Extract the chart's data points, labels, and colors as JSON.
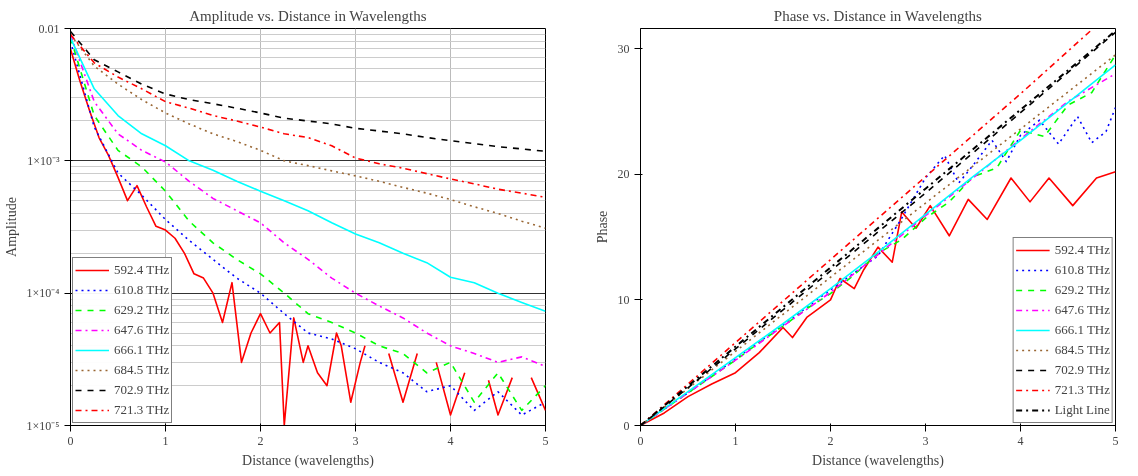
{
  "chart_data": [
    {
      "type": "line",
      "title": "Amplitude vs. Distance in Wavelengths",
      "xlabel": "Distance (wavelengths)",
      "ylabel": "Amplitude",
      "log": "y",
      "grid": true,
      "legend": "bottom left",
      "xlim": [
        0,
        5
      ],
      "xticks": [
        0,
        1,
        2,
        3,
        4,
        5
      ],
      "ylim": [
        1e-05,
        0.01
      ],
      "yticks": [
        {
          "value": 1e-05,
          "label": "1×10⁻⁵"
        },
        {
          "value": 0.0001,
          "label": "1×10⁻⁴"
        },
        {
          "value": 0.001,
          "label": "1×10⁻³"
        },
        0.01
      ],
      "x": [
        0,
        0.25,
        0.5,
        0.75,
        1,
        1.25,
        1.5,
        1.75,
        2,
        2.25,
        2.5,
        2.75,
        3,
        3.25,
        3.5,
        3.75,
        4,
        4.25,
        4.5,
        4.75,
        5
      ],
      "series": [
        {
          "name": "592.4 THz",
          "color": "#ff0000",
          "line_style": "solid",
          "x": [
            0,
            0.1,
            0.2,
            0.3,
            0.4,
            0.5,
            0.6,
            0.7,
            0.8,
            0.9,
            1.0,
            1.1,
            1.2,
            1.3,
            1.4,
            1.5,
            1.6,
            1.7,
            1.8,
            1.9,
            2.0,
            2.1,
            2.2,
            2.25,
            2.35,
            2.45,
            2.5,
            2.6,
            2.7,
            2.8,
            2.85,
            2.95,
            3.05,
            3.1,
            3.2,
            3.35,
            3.5,
            3.65,
            3.75,
            3.85,
            4.0,
            4.15,
            4.25,
            4.4,
            4.5,
            4.65,
            4.75,
            4.85,
            5.0
          ],
          "values": [
            0.007,
            0.004,
            0.0024,
            0.0015,
            0.0011,
            0.00075,
            0.0005,
            0.00065,
            0.00045,
            0.00032,
            0.0003,
            0.00026,
            0.0002,
            0.00014,
            0.00013,
            0.0001,
            6e-05,
            0.00012,
            3e-05,
            5e-05,
            7e-05,
            5e-05,
            6e-05,
            1e-05,
            6.5e-05,
            3e-05,
            4e-05,
            2.5e-05,
            2e-05,
            5e-05,
            4e-05,
            1.5e-05,
            3e-05,
            4e-05,
            null,
            3.5e-05,
            1.5e-05,
            3.5e-05,
            null,
            3e-05,
            1.2e-05,
            2.5e-05,
            null,
            2.2e-05,
            1.2e-05,
            2.3e-05,
            null,
            2.3e-05,
            1.3e-05
          ]
        },
        {
          "name": "610.8 THz",
          "color": "#0000ff",
          "line_style": "dotted",
          "values": [
            0.008,
            0.0018,
            0.00081,
            0.00055,
            0.00036,
            0.00025,
            0.00018,
            0.00013,
            0.0001,
            7e-05,
            5e-05,
            4.5e-05,
            3.8e-05,
            3e-05,
            2.5e-05,
            1.8e-05,
            2e-05,
            1.3e-05,
            1.8e-05,
            1.2e-05,
            1.5e-05
          ]
        },
        {
          "name": "629.2 THz",
          "color": "#00ff00",
          "line_style": "dashed",
          "values": [
            0.0085,
            0.0022,
            0.0012,
            0.0009,
            0.00059,
            0.00035,
            0.00024,
            0.00018,
            0.00014,
            0.0001,
            7e-05,
            6e-05,
            5e-05,
            4e-05,
            3.5e-05,
            2.5e-05,
            3e-05,
            1.5e-05,
            2.5e-05,
            1.3e-05,
            2e-05
          ]
        },
        {
          "name": "647.6 THz",
          "color": "#ff00ff",
          "line_style": "dashdot",
          "values": [
            0.009,
            0.0028,
            0.0016,
            0.0012,
            0.00098,
            0.0007,
            0.00052,
            0.00042,
            0.00034,
            0.00024,
            0.00018,
            0.00013,
            0.0001,
            8e-05,
            6.5e-05,
            5e-05,
            4e-05,
            3.5e-05,
            3e-05,
            3.3e-05,
            2.8e-05
          ]
        },
        {
          "name": "666.1 THz",
          "color": "#00ffff",
          "line_style": "solid",
          "values": [
            0.0085,
            0.0035,
            0.0022,
            0.0016,
            0.0013,
            0.001,
            0.00085,
            0.0007,
            0.00059,
            0.0005,
            0.00042,
            0.00034,
            0.00028,
            0.00024,
            0.0002,
            0.00017,
            0.000132,
            0.00012,
            0.0001,
            8.5e-05,
            7.3e-05
          ]
        },
        {
          "name": "684.5 THz",
          "color": "#996633",
          "line_style": "dotted",
          "values": [
            0.009,
            0.0052,
            0.0038,
            0.0029,
            0.0023,
            0.0019,
            0.0016,
            0.0014,
            0.0012,
            0.001,
            0.00092,
            0.00084,
            0.00077,
            0.0007,
            0.00063,
            0.00057,
            0.00051,
            0.00045,
            0.0004,
            0.00035,
            0.00031
          ]
        },
        {
          "name": "702.9 THz",
          "color": "#000000",
          "line_style": "dashed",
          "values": [
            0.0095,
            0.0058,
            0.0047,
            0.0038,
            0.0032,
            0.0029,
            0.0027,
            0.0025,
            0.0023,
            0.0021,
            0.002,
            0.0019,
            0.00176,
            0.00168,
            0.0016,
            0.0015,
            0.00142,
            0.00135,
            0.00128,
            0.00123,
            0.00118
          ]
        },
        {
          "name": "721.3 THz",
          "color": "#ff0000",
          "line_style": "dashdot",
          "values": [
            0.009,
            0.0055,
            0.0043,
            0.0035,
            0.0028,
            0.0025,
            0.0022,
            0.002,
            0.0018,
            0.0016,
            0.0015,
            0.0013,
            0.00105,
            0.00095,
            0.00088,
            0.0008,
            0.00073,
            0.00067,
            0.00061,
            0.00057,
            0.00053
          ]
        }
      ]
    },
    {
      "type": "line",
      "title": "Phase vs. Distance in Wavelengths",
      "xlabel": "Distance (wavelengths)",
      "ylabel": "Phase",
      "grid": false,
      "legend": "bottom right",
      "xlim": [
        0,
        5
      ],
      "xticks": [
        0,
        1,
        2,
        3,
        4,
        5
      ],
      "ylim": [
        0,
        31.6
      ],
      "yticks": [
        0,
        10,
        20,
        30
      ],
      "x": [
        0,
        0.5,
        1,
        1.5,
        2,
        2.5,
        3,
        3.5,
        4,
        4.5,
        5
      ],
      "series": [
        {
          "name": "592.4 THz",
          "color": "#ff0000",
          "line_style": "solid",
          "x": [
            0,
            0.25,
            0.5,
            0.75,
            1,
            1.25,
            1.5,
            1.6,
            1.75,
            2,
            2.1,
            2.25,
            2.35,
            2.5,
            2.65,
            2.75,
            2.9,
            3.05,
            3.25,
            3.45,
            3.65,
            3.9,
            4.1,
            4.3,
            4.55,
            4.8,
            5.0
          ],
          "values": [
            0,
            1.0,
            2.3,
            3.3,
            4.2,
            5.8,
            7.8,
            7.0,
            8.6,
            10.0,
            11.7,
            10.9,
            12.4,
            14.2,
            13.0,
            17.0,
            15.7,
            17.5,
            15.1,
            18.0,
            16.4,
            19.7,
            17.8,
            19.7,
            17.5,
            19.7,
            20.2
          ]
        },
        {
          "name": "610.8 THz",
          "color": "#0000ff",
          "line_style": "dotted",
          "x": [
            0,
            0.5,
            1,
            1.5,
            2,
            2.5,
            2.75,
            3.0,
            3.2,
            3.35,
            3.5,
            3.7,
            3.85,
            4.0,
            4.2,
            4.4,
            4.6,
            4.75,
            4.9,
            5.0
          ],
          "values": [
            0,
            2.6,
            5.3,
            8.0,
            10.8,
            13.5,
            16.5,
            19.7,
            21.5,
            19.3,
            20.7,
            22.7,
            21.0,
            23.1,
            24.3,
            22.4,
            24.6,
            22.5,
            23.4,
            25.3
          ]
        },
        {
          "name": "629.2 THz",
          "color": "#00ff00",
          "line_style": "dashed",
          "x": [
            0,
            0.25,
            0.5,
            0.75,
            1,
            1.25,
            1.5,
            1.75,
            2,
            2.25,
            2.5,
            2.75,
            3,
            3.25,
            3.5,
            3.75,
            4,
            4.25,
            4.5,
            4.75,
            5
          ],
          "values": [
            0,
            1.3,
            2.6,
            3.9,
            5.2,
            6.6,
            7.9,
            9.3,
            10.5,
            12.0,
            13.7,
            14.8,
            16.5,
            17.8,
            19.8,
            20.5,
            23.5,
            23.0,
            25.5,
            26.5,
            29.5
          ]
        },
        {
          "name": "647.6 THz",
          "color": "#ff00ff",
          "line_style": "dashdot",
          "values": [
            0,
            2.6,
            5.2,
            7.9,
            10.6,
            13.6,
            16.7,
            19.7,
            22.8,
            25.8,
            28.0
          ]
        },
        {
          "name": "666.1 THz",
          "color": "#00ffff",
          "line_style": "solid",
          "values": [
            0,
            2.7,
            5.4,
            8.1,
            10.9,
            13.8,
            16.8,
            19.8,
            22.7,
            25.7,
            28.7
          ]
        },
        {
          "name": "684.5 THz",
          "color": "#996633",
          "line_style": "dotted",
          "values": [
            0,
            2.95,
            5.9,
            8.85,
            11.8,
            14.75,
            17.7,
            20.65,
            23.6,
            26.55,
            29.5
          ]
        },
        {
          "name": "702.9 THz",
          "color": "#000000",
          "line_style": "dashed",
          "values": [
            0,
            3.0,
            6.1,
            9.2,
            12.3,
            15.4,
            18.5,
            21.7,
            24.9,
            28.1,
            31.3
          ]
        },
        {
          "name": "721.3 THz",
          "color": "#ff0000",
          "line_style": "dashdot",
          "x": [
            0,
            0.5,
            1,
            1.5,
            2,
            2.5,
            3,
            3.5,
            4,
            4.5,
            4.75
          ],
          "values": [
            0,
            3.3,
            6.6,
            9.9,
            13.2,
            16.5,
            19.8,
            23.1,
            26.4,
            29.8,
            31.5
          ]
        },
        {
          "name": "Light Line",
          "color": "#000000",
          "line_style": "dashdot",
          "values": [
            0,
            3.14,
            6.28,
            9.42,
            12.57,
            15.71,
            18.85,
            21.99,
            25.13,
            28.27,
            31.42
          ]
        }
      ]
    }
  ]
}
